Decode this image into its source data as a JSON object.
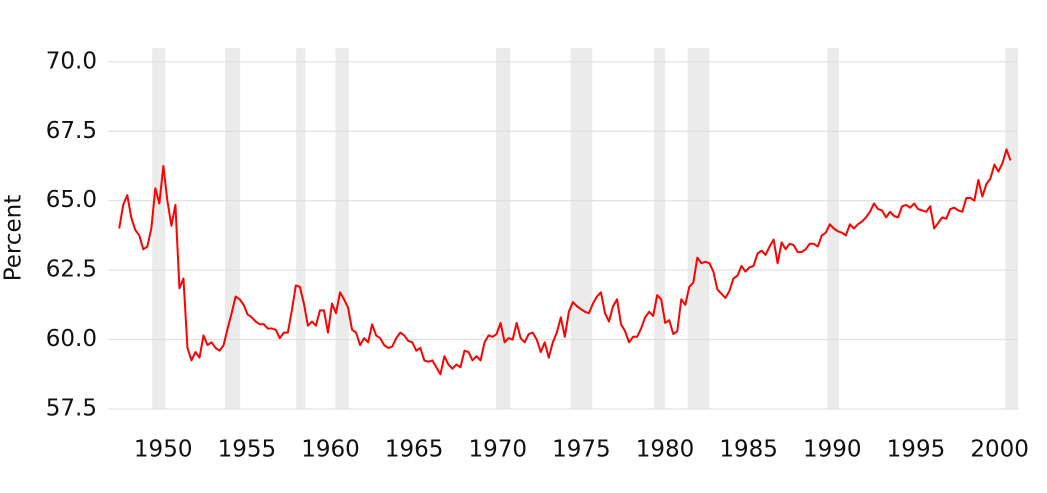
{
  "chart_data": {
    "type": "line",
    "ylabel": "Percent",
    "xlim": [
      1946.7,
      2001.1
    ],
    "ylim": [
      57.5,
      70.5
    ],
    "xticks": [
      1950,
      1955,
      1960,
      1965,
      1970,
      1975,
      1980,
      1985,
      1990,
      1995,
      2000
    ],
    "yticks": [
      {
        "value": 57.5,
        "label": "57.5"
      },
      {
        "value": 60,
        "label": "60.0"
      },
      {
        "value": 62.5,
        "label": "62.5"
      },
      {
        "value": 65,
        "label": "65.0"
      },
      {
        "value": 67.5,
        "label": "67.5"
      },
      {
        "value": 70,
        "label": "70.0"
      }
    ],
    "grid": true,
    "shade_color": "#ebebeb",
    "shaded_regions": [
      [
        1949.34,
        1950.12
      ],
      [
        1953.7,
        1954.6
      ],
      [
        1957.95,
        1958.5
      ],
      [
        1960.3,
        1961.1
      ],
      [
        1969.9,
        1970.75
      ],
      [
        1974.35,
        1975.65
      ],
      [
        1979.35,
        1980.0
      ],
      [
        1981.35,
        1982.65
      ],
      [
        1989.7,
        1990.4
      ],
      [
        2000.35,
        2001.1
      ]
    ],
    "x": [
      1947.37,
      1947.61,
      1947.85,
      1948.09,
      1948.33,
      1948.57,
      1948.81,
      1949.05,
      1949.29,
      1949.53,
      1949.77,
      1950.01,
      1950.25,
      1950.49,
      1950.73,
      1950.97,
      1951.21,
      1951.45,
      1951.69,
      1951.93,
      1952.17,
      1952.41,
      1952.65,
      1952.89,
      1953.13,
      1953.37,
      1953.61,
      1953.85,
      1954.09,
      1954.33,
      1954.57,
      1954.81,
      1955.05,
      1955.29,
      1955.53,
      1955.77,
      1956.01,
      1956.25,
      1956.49,
      1956.73,
      1956.97,
      1957.21,
      1957.45,
      1957.69,
      1957.93,
      1958.17,
      1958.41,
      1958.65,
      1958.89,
      1959.13,
      1959.37,
      1959.61,
      1959.85,
      1960.09,
      1960.33,
      1960.57,
      1960.81,
      1961.05,
      1961.29,
      1961.53,
      1961.77,
      1962.01,
      1962.25,
      1962.49,
      1962.73,
      1962.97,
      1963.21,
      1963.45,
      1963.69,
      1963.93,
      1964.17,
      1964.41,
      1964.65,
      1964.89,
      1965.13,
      1965.37,
      1965.61,
      1965.85,
      1966.09,
      1966.33,
      1966.57,
      1966.81,
      1967.05,
      1967.29,
      1967.53,
      1967.77,
      1968.01,
      1968.25,
      1968.49,
      1968.73,
      1968.97,
      1969.21,
      1969.45,
      1969.69,
      1969.93,
      1970.17,
      1970.41,
      1970.65,
      1970.89,
      1971.13,
      1971.37,
      1971.61,
      1971.85,
      1972.09,
      1972.33,
      1972.57,
      1972.81,
      1973.05,
      1973.29,
      1973.53,
      1973.77,
      1974.01,
      1974.25,
      1974.49,
      1974.73,
      1974.97,
      1975.21,
      1975.45,
      1975.69,
      1975.93,
      1976.17,
      1976.41,
      1976.65,
      1976.89,
      1977.13,
      1977.37,
      1977.61,
      1977.85,
      1978.09,
      1978.33,
      1978.57,
      1978.81,
      1979.05,
      1979.29,
      1979.53,
      1979.77,
      1980.01,
      1980.25,
      1980.49,
      1980.73,
      1980.97,
      1981.21,
      1981.45,
      1981.69,
      1981.93,
      1982.17,
      1982.41,
      1982.65,
      1982.89,
      1983.13,
      1983.37,
      1983.61,
      1983.85,
      1984.09,
      1984.33,
      1984.57,
      1984.81,
      1985.05,
      1985.29,
      1985.53,
      1985.77,
      1986.01,
      1986.25,
      1986.49,
      1986.73,
      1986.97,
      1987.21,
      1987.45,
      1987.69,
      1987.93,
      1988.17,
      1988.41,
      1988.65,
      1988.89,
      1989.13,
      1989.37,
      1989.61,
      1989.85,
      1990.09,
      1990.33,
      1990.57,
      1990.81,
      1991.05,
      1991.29,
      1991.53,
      1991.77,
      1992.01,
      1992.25,
      1992.49,
      1992.73,
      1992.97,
      1993.21,
      1993.45,
      1993.69,
      1993.93,
      1994.17,
      1994.41,
      1994.65,
      1994.89,
      1995.13,
      1995.37,
      1995.61,
      1995.85,
      1996.09,
      1996.33,
      1996.57,
      1996.81,
      1997.05,
      1997.29,
      1997.53,
      1997.77,
      1998.01,
      1998.25,
      1998.49,
      1998.73,
      1998.97,
      1999.21,
      1999.45,
      1999.69,
      1999.93,
      2000.17,
      2000.41,
      2000.65
    ],
    "series": [
      {
        "color": "#ff0000",
        "values": [
          64.0,
          64.85,
          65.2,
          64.4,
          63.95,
          63.75,
          63.25,
          63.35,
          64.0,
          65.45,
          64.9,
          66.25,
          65.0,
          64.1,
          64.85,
          61.85,
          62.2,
          59.7,
          59.25,
          59.55,
          59.35,
          60.15,
          59.8,
          59.9,
          59.7,
          59.6,
          59.8,
          60.4,
          60.95,
          61.55,
          61.45,
          61.25,
          60.9,
          60.8,
          60.65,
          60.55,
          60.55,
          60.4,
          60.4,
          60.35,
          60.05,
          60.25,
          60.25,
          61.05,
          61.95,
          61.9,
          61.3,
          60.5,
          60.65,
          60.5,
          61.05,
          61.05,
          60.25,
          61.3,
          60.95,
          61.7,
          61.45,
          61.15,
          60.35,
          60.25,
          59.8,
          60.05,
          59.9,
          60.55,
          60.15,
          60.05,
          59.8,
          59.7,
          59.75,
          60.05,
          60.25,
          60.15,
          59.95,
          59.9,
          59.6,
          59.7,
          59.25,
          59.2,
          59.25,
          59.0,
          58.75,
          59.4,
          59.1,
          58.95,
          59.1,
          59.0,
          59.6,
          59.55,
          59.25,
          59.4,
          59.25,
          59.9,
          60.15,
          60.1,
          60.2,
          60.6,
          59.9,
          60.05,
          60.0,
          60.6,
          60.05,
          59.9,
          60.2,
          60.25,
          60.0,
          59.55,
          59.9,
          59.35,
          59.9,
          60.25,
          60.8,
          60.1,
          61.0,
          61.35,
          61.2,
          61.1,
          61.0,
          60.95,
          61.3,
          61.55,
          61.7,
          60.95,
          60.65,
          61.2,
          61.45,
          60.55,
          60.3,
          59.9,
          60.1,
          60.1,
          60.4,
          60.8,
          61.0,
          60.85,
          61.6,
          61.45,
          60.6,
          60.7,
          60.2,
          60.3,
          61.45,
          61.25,
          61.9,
          62.05,
          62.95,
          62.75,
          62.8,
          62.75,
          62.45,
          61.8,
          61.65,
          61.5,
          61.75,
          62.2,
          62.3,
          62.65,
          62.45,
          62.6,
          62.65,
          63.1,
          63.2,
          63.05,
          63.35,
          63.6,
          62.75,
          63.5,
          63.25,
          63.45,
          63.4,
          63.15,
          63.15,
          63.25,
          63.45,
          63.45,
          63.35,
          63.75,
          63.85,
          64.15,
          64.0,
          63.9,
          63.85,
          63.75,
          64.15,
          64.0,
          64.15,
          64.25,
          64.4,
          64.6,
          64.9,
          64.7,
          64.65,
          64.4,
          64.6,
          64.45,
          64.4,
          64.8,
          64.85,
          64.75,
          64.9,
          64.7,
          64.65,
          64.6,
          64.8,
          64.0,
          64.2,
          64.4,
          64.35,
          64.7,
          64.75,
          64.65,
          64.6,
          65.1,
          65.1,
          65.0,
          65.75,
          65.15,
          65.6,
          65.8,
          66.3,
          66.05,
          66.35,
          66.85,
          66.45
        ]
      }
    ]
  }
}
